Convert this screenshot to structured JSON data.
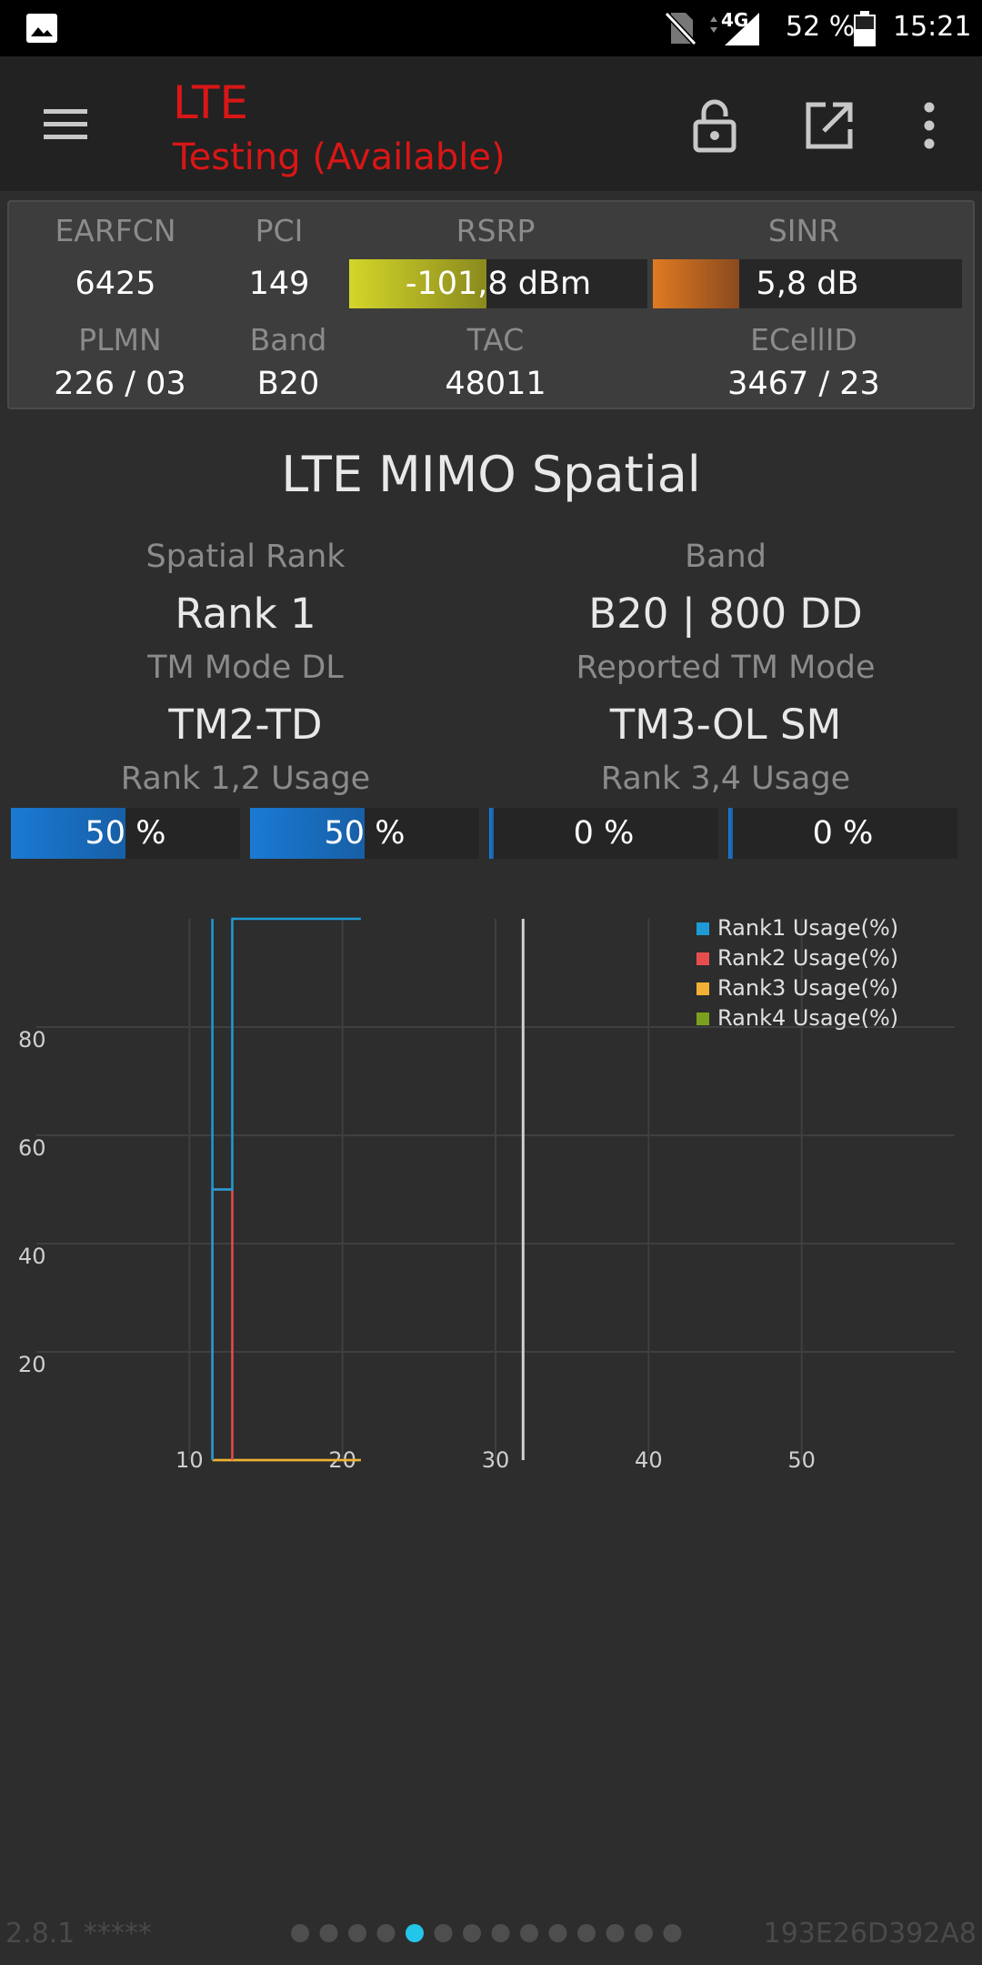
{
  "status_bar": {
    "network_type": "4G",
    "battery": "52 %",
    "time": "15:21"
  },
  "app_bar": {
    "title": "LTE",
    "subtitle": "Testing (Available)",
    "accent_color": "#d91616"
  },
  "cell_info": {
    "labels": {
      "earfcn": "EARFCN",
      "pci": "PCI",
      "rsrp": "RSRP",
      "sinr": "SINR",
      "plmn": "PLMN",
      "band": "Band",
      "tac": "TAC",
      "ecellid": "ECellID"
    },
    "values": {
      "earfcn": "6425",
      "pci": "149",
      "rsrp": "-101,8 dBm",
      "sinr": "5,8 dB",
      "plmn": "226 / 03",
      "band": "B20",
      "tac": "48011",
      "ecellid": "3467 / 23"
    },
    "rsrp_level": 0.46,
    "sinr_level": 0.28,
    "rsrp_color": "#d4d62a",
    "sinr_color": "#e07a22"
  },
  "mimo": {
    "title": "LTE MIMO Spatial",
    "spatial_rank_label": "Spatial Rank",
    "spatial_rank": "Rank 1",
    "band_label": "Band",
    "band": "B20 | 800 DD",
    "tm_mode_dl_label": "TM Mode DL",
    "tm_mode_dl": "TM2-TD",
    "reported_tm_label": "Reported TM Mode",
    "reported_tm": "TM3-OL SM",
    "rank12_label": "Rank 1,2 Usage",
    "rank34_label": "Rank 3,4 Usage",
    "usage": [
      {
        "text": "50 %",
        "value": 50
      },
      {
        "text": "50 %",
        "value": 50
      },
      {
        "text": "0 %",
        "value": 0
      },
      {
        "text": "0 %",
        "value": 0
      }
    ]
  },
  "chart_data": {
    "type": "line",
    "title": "",
    "xlabel": "",
    "ylabel": "",
    "xlim": [
      0,
      60
    ],
    "ylim": [
      0,
      100
    ],
    "x_ticks": [
      10,
      20,
      30,
      40,
      50
    ],
    "y_ticks": [
      20,
      40,
      60,
      80
    ],
    "grid": true,
    "legend_position": "top-right",
    "cursor_x": 31.8,
    "series": [
      {
        "name": "Rank1 Usage(%)",
        "color": "#1e9bd7",
        "points": [
          [
            11.5,
            0
          ],
          [
            11.5,
            100
          ],
          [
            11.5,
            50
          ],
          [
            12.8,
            50
          ],
          [
            12.8,
            100
          ],
          [
            21.2,
            100
          ]
        ]
      },
      {
        "name": "Rank2 Usage(%)",
        "color": "#e84d4d",
        "points": [
          [
            11.5,
            0
          ],
          [
            11.5,
            50
          ],
          [
            12.8,
            50
          ],
          [
            12.8,
            0
          ]
        ]
      },
      {
        "name": "Rank3 Usage(%)",
        "color": "#f2b134",
        "points": [
          [
            11.5,
            0
          ],
          [
            21.2,
            0
          ]
        ]
      },
      {
        "name": "Rank4 Usage(%)",
        "color": "#7aa11e",
        "points": [
          [
            11.5,
            0
          ],
          [
            21.2,
            0
          ]
        ]
      }
    ]
  },
  "footer": {
    "version": "2.8.1 *****",
    "device_id": "193E26D392A8",
    "page_count": 14,
    "active_page": 5
  }
}
